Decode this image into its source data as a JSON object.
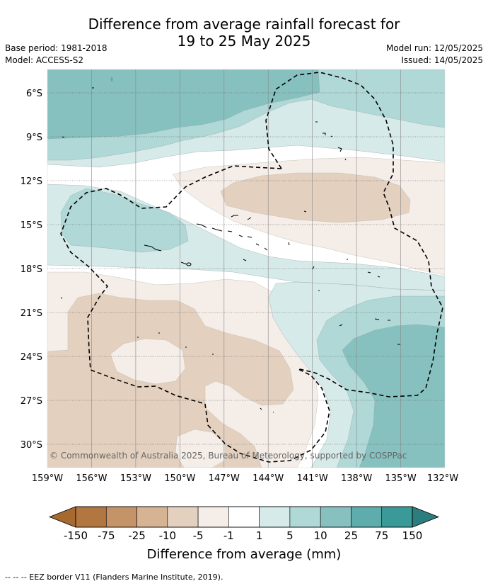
{
  "title_line1": "Difference from average rainfall forecast for",
  "title_line2": "19 to 25 May 2025",
  "meta_left": {
    "base_period": "Base period: 1981-2018",
    "model": "Model: ACCESS-S2"
  },
  "meta_right": {
    "model_run": "Model run: 12/05/2025",
    "issued": "Issued: 14/05/2025"
  },
  "map": {
    "lat_ticks": [
      "6°S",
      "9°S",
      "12°S",
      "15°S",
      "18°S",
      "21°S",
      "24°S",
      "27°S",
      "30°S"
    ],
    "lon_ticks": [
      "159°W",
      "156°W",
      "153°W",
      "150°W",
      "147°W",
      "144°W",
      "141°W",
      "138°W",
      "135°W",
      "132°W"
    ],
    "copyright": "© Commonwealth of Australia 2025, Bureau of Meteorology, supported by COSPPac"
  },
  "colorbar": {
    "labels": [
      "-150",
      "-75",
      "-25",
      "-10",
      "-5",
      "-1",
      "1",
      "5",
      "10",
      "25",
      "75",
      "150"
    ],
    "colors": [
      "#a6692f",
      "#b27740",
      "#c49468",
      "#d5b393",
      "#e4d0bf",
      "#f4ede8",
      "#ffffff",
      "#d6eae9",
      "#b0d8d7",
      "#86c1c0",
      "#5eadac",
      "#3a9a98",
      "#2b7e7d"
    ],
    "title": "Difference from average (mm)"
  },
  "footer": "-- -- -- EEZ border V11 (Flanders Marine Institute, 2019)."
}
